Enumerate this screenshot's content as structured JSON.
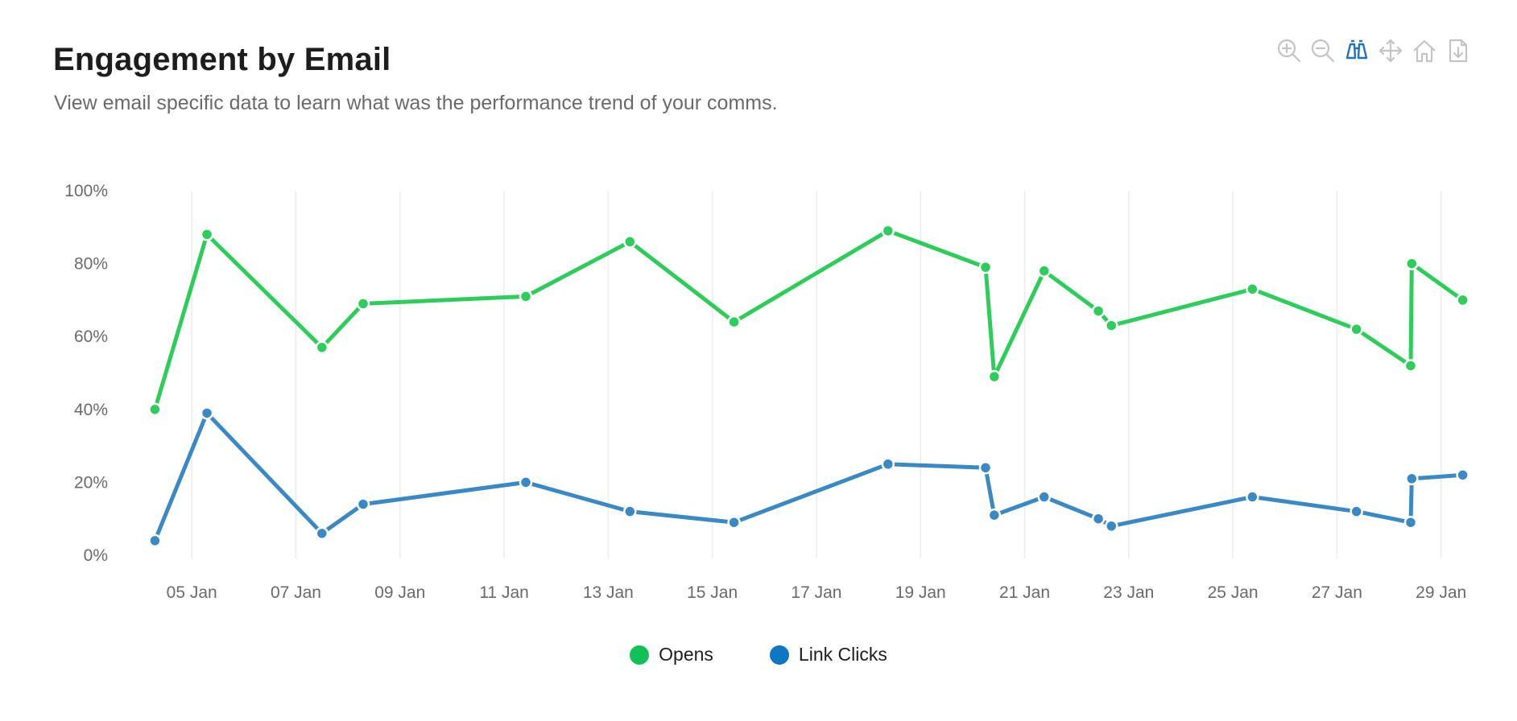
{
  "header": {
    "title": "Engagement by Email",
    "subtitle": "View email specific data to learn what was the performance trend of your comms."
  },
  "toolbar": {
    "tools": [
      "zoom-in-icon",
      "zoom-out-icon",
      "binoculars-icon",
      "pan-icon",
      "home-icon",
      "download-icon"
    ],
    "active_tool": "binoculars-icon",
    "icon_color": "#c4c4c4",
    "active_color": "#1f73b7"
  },
  "colors": {
    "opens": "#2ecc5a",
    "opens_legend": "#12c155",
    "clicks": "#3a89c5",
    "clicks_legend": "#0f76c2",
    "grid": "#ececec",
    "tick_text": "#6a6a6a"
  },
  "chart_data": {
    "type": "line",
    "x_axis": {
      "min": "2024-01-03T16:00",
      "max": "2024-01-29T12:00",
      "tick_labels": [
        "05 Jan",
        "07 Jan",
        "09 Jan",
        "11 Jan",
        "13 Jan",
        "15 Jan",
        "17 Jan",
        "19 Jan",
        "21 Jan",
        "23 Jan",
        "25 Jan",
        "27 Jan",
        "29 Jan"
      ],
      "tick_dates": [
        "2024-01-05",
        "2024-01-07",
        "2024-01-09",
        "2024-01-11",
        "2024-01-13",
        "2024-01-15",
        "2024-01-17",
        "2024-01-19",
        "2024-01-21",
        "2024-01-23",
        "2024-01-25",
        "2024-01-27",
        "2024-01-29"
      ]
    },
    "y_axis": {
      "min": 0,
      "max": 100,
      "tick_labels": [
        "0%",
        "20%",
        "40%",
        "60%",
        "80%",
        "100%"
      ],
      "tick_values": [
        0,
        20,
        40,
        60,
        80,
        100
      ]
    },
    "grid": true,
    "legend_position": "bottom-center",
    "series": [
      {
        "name": "Opens",
        "color_key": "opens",
        "points": [
          {
            "x": "2024-01-04T07:00",
            "y": 40
          },
          {
            "x": "2024-01-05T07:00",
            "y": 88
          },
          {
            "x": "2024-01-07T12:00",
            "y": 57
          },
          {
            "x": "2024-01-08T07:00",
            "y": 69
          },
          {
            "x": "2024-01-11T10:00",
            "y": 71
          },
          {
            "x": "2024-01-13T10:00",
            "y": 86
          },
          {
            "x": "2024-01-15T10:00",
            "y": 64
          },
          {
            "x": "2024-01-18T09:00",
            "y": 89
          },
          {
            "x": "2024-01-20T06:00",
            "y": 79
          },
          {
            "x": "2024-01-20T10:00",
            "y": 49
          },
          {
            "x": "2024-01-21T09:00",
            "y": 78
          },
          {
            "x": "2024-01-22T10:00",
            "y": 67
          },
          {
            "x": "2024-01-22T16:00",
            "y": 63
          },
          {
            "x": "2024-01-25T09:00",
            "y": 73
          },
          {
            "x": "2024-01-27T09:00",
            "y": 62
          },
          {
            "x": "2024-01-28T10:00",
            "y": 52
          },
          {
            "x": "2024-01-28T10:30",
            "y": 80
          },
          {
            "x": "2024-01-29T10:00",
            "y": 70
          }
        ]
      },
      {
        "name": "Link Clicks",
        "color_key": "clicks",
        "points": [
          {
            "x": "2024-01-04T07:00",
            "y": 4
          },
          {
            "x": "2024-01-05T07:00",
            "y": 39
          },
          {
            "x": "2024-01-07T12:00",
            "y": 6
          },
          {
            "x": "2024-01-08T07:00",
            "y": 14
          },
          {
            "x": "2024-01-11T10:00",
            "y": 20
          },
          {
            "x": "2024-01-13T10:00",
            "y": 12
          },
          {
            "x": "2024-01-15T10:00",
            "y": 9
          },
          {
            "x": "2024-01-18T09:00",
            "y": 25
          },
          {
            "x": "2024-01-20T06:00",
            "y": 24
          },
          {
            "x": "2024-01-20T10:00",
            "y": 11
          },
          {
            "x": "2024-01-21T09:00",
            "y": 16
          },
          {
            "x": "2024-01-22T10:00",
            "y": 10
          },
          {
            "x": "2024-01-22T16:00",
            "y": 8
          },
          {
            "x": "2024-01-25T09:00",
            "y": 16
          },
          {
            "x": "2024-01-27T09:00",
            "y": 12
          },
          {
            "x": "2024-01-28T10:00",
            "y": 9
          },
          {
            "x": "2024-01-28T10:30",
            "y": 21
          },
          {
            "x": "2024-01-29T10:00",
            "y": 22
          }
        ]
      }
    ]
  },
  "legend": {
    "items": [
      {
        "label": "Opens",
        "color_key": "opens_legend"
      },
      {
        "label": "Link Clicks",
        "color_key": "clicks_legend"
      }
    ]
  }
}
